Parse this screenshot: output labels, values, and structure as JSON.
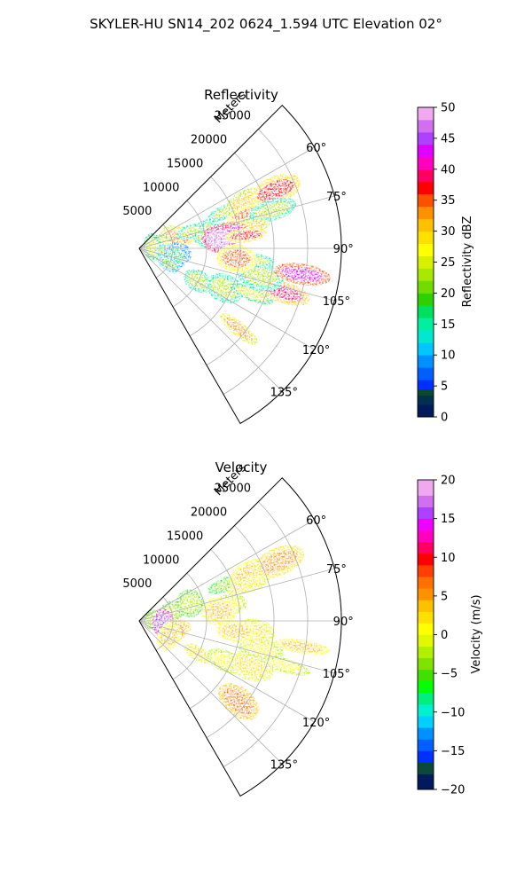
{
  "suptitle": "SKYLER-HU  SN14_202  0624_1.594 UTC Elevation 02°",
  "chart_data": [
    {
      "type": "polar-sector",
      "title": "Reflectivity",
      "radial_label": "Meters",
      "radial_ticks": [
        5000,
        10000,
        15000,
        20000,
        25000
      ],
      "radial_tick_labels": [
        "5000",
        "10000",
        "15000",
        "20000",
        "25000"
      ],
      "rlim": [
        0,
        30000
      ],
      "angle_ticks": [
        60,
        75,
        90,
        105,
        120,
        135
      ],
      "angle_tick_labels": [
        "60°",
        "75°",
        "90°",
        "105°",
        "120°",
        "135°"
      ],
      "thetalim": [
        45,
        150
      ],
      "grid": true,
      "colorbar": {
        "label": "Reflectivity dBZ",
        "range": [
          0,
          50
        ],
        "ticks": [
          0,
          5,
          10,
          15,
          20,
          25,
          30,
          35,
          40,
          45,
          50
        ],
        "tick_labels": [
          "0",
          "5",
          "10",
          "15",
          "20",
          "25",
          "30",
          "35",
          "40",
          "45",
          "50"
        ]
      },
      "features": [
        {
          "az": 67,
          "r": 14000,
          "value": 22
        },
        {
          "az": 66,
          "r": 17500,
          "value": 30
        },
        {
          "az": 67,
          "r": 22000,
          "value": 37
        },
        {
          "az": 72,
          "r": 17000,
          "value": 34
        },
        {
          "az": 74,
          "r": 20500,
          "value": 22
        },
        {
          "az": 78,
          "r": 10500,
          "value": 22
        },
        {
          "az": 79,
          "r": 16500,
          "value": 30
        },
        {
          "az": 80,
          "r": 13500,
          "value": 42
        },
        {
          "az": 83,
          "r": 12000,
          "value": 46
        },
        {
          "az": 83,
          "r": 16000,
          "value": 36
        },
        {
          "az": 75,
          "r": 6500,
          "value": 36
        },
        {
          "az": 74,
          "r": 5000,
          "value": 33
        },
        {
          "az": 72,
          "r": 8000,
          "value": 23
        },
        {
          "az": 80,
          "r": 3500,
          "value": 28
        },
        {
          "az": 85,
          "r": 2000,
          "value": 25
        },
        {
          "az": 95,
          "r": 4000,
          "value": 21
        },
        {
          "az": 98,
          "r": 6000,
          "value": 17
        },
        {
          "az": 103,
          "r": 5500,
          "value": 16
        },
        {
          "az": 118,
          "r": 5000,
          "value": 19
        },
        {
          "az": 119,
          "r": 10000,
          "value": 22
        },
        {
          "az": 115,
          "r": 14000,
          "value": 23
        },
        {
          "az": 112,
          "r": 18000,
          "value": 24
        },
        {
          "az": 107,
          "r": 22500,
          "value": 38
        },
        {
          "az": 103,
          "r": 18500,
          "value": 22
        },
        {
          "az": 96,
          "r": 17000,
          "value": 22
        },
        {
          "az": 99,
          "r": 24500,
          "value": 42
        },
        {
          "az": 96,
          "r": 14500,
          "value": 35
        },
        {
          "az": 129,
          "r": 19000,
          "value": 33
        }
      ]
    },
    {
      "type": "polar-sector",
      "title": "Velocity",
      "radial_label": "Meters",
      "radial_ticks": [
        5000,
        10000,
        15000,
        20000,
        25000
      ],
      "radial_tick_labels": [
        "5000",
        "10000",
        "15000",
        "20000",
        "25000"
      ],
      "rlim": [
        0,
        30000
      ],
      "angle_ticks": [
        60,
        75,
        90,
        105,
        120,
        135
      ],
      "angle_tick_labels": [
        "60°",
        "75°",
        "90°",
        "105°",
        "120°",
        "135°"
      ],
      "thetalim": [
        45,
        150
      ],
      "grid": true,
      "colorbar": {
        "label": "Velocity (m/s)",
        "range": [
          -20,
          20
        ],
        "ticks": [
          -20,
          -15,
          -10,
          -5,
          0,
          5,
          10,
          15,
          20
        ],
        "tick_labels": [
          "−20",
          "−15",
          "−10",
          "−5",
          "0",
          "5",
          "10",
          "15",
          "20"
        ]
      },
      "features": [
        {
          "az": 67,
          "r": 14000,
          "value": -4
        },
        {
          "az": 66,
          "r": 18000,
          "value": 3
        },
        {
          "az": 67,
          "r": 22500,
          "value": 5
        },
        {
          "az": 72,
          "r": 17000,
          "value": 2
        },
        {
          "az": 80,
          "r": 13500,
          "value": 1
        },
        {
          "az": 83,
          "r": 12000,
          "value": 3
        },
        {
          "az": 75,
          "r": 6500,
          "value": -3
        },
        {
          "az": 74,
          "r": 5000,
          "value": -3
        },
        {
          "az": 71,
          "r": 8000,
          "value": -2
        },
        {
          "az": 80,
          "r": 3500,
          "value": -1
        },
        {
          "az": 85,
          "r": 2000,
          "value": -2
        },
        {
          "az": 95,
          "r": 3500,
          "value": 15
        },
        {
          "az": 98,
          "r": 6000,
          "value": 5
        },
        {
          "az": 104,
          "r": 5500,
          "value": 6
        },
        {
          "az": 118,
          "r": 5000,
          "value": 4
        },
        {
          "az": 119,
          "r": 10000,
          "value": 2
        },
        {
          "az": 115,
          "r": 14000,
          "value": 1
        },
        {
          "az": 112,
          "r": 18000,
          "value": 2
        },
        {
          "az": 107,
          "r": 22500,
          "value": 0
        },
        {
          "az": 103,
          "r": 18500,
          "value": 1
        },
        {
          "az": 96,
          "r": 17000,
          "value": 2
        },
        {
          "az": 99,
          "r": 24500,
          "value": 4
        },
        {
          "az": 96,
          "r": 14500,
          "value": 3
        },
        {
          "az": 129,
          "r": 19000,
          "value": 6
        }
      ]
    }
  ]
}
